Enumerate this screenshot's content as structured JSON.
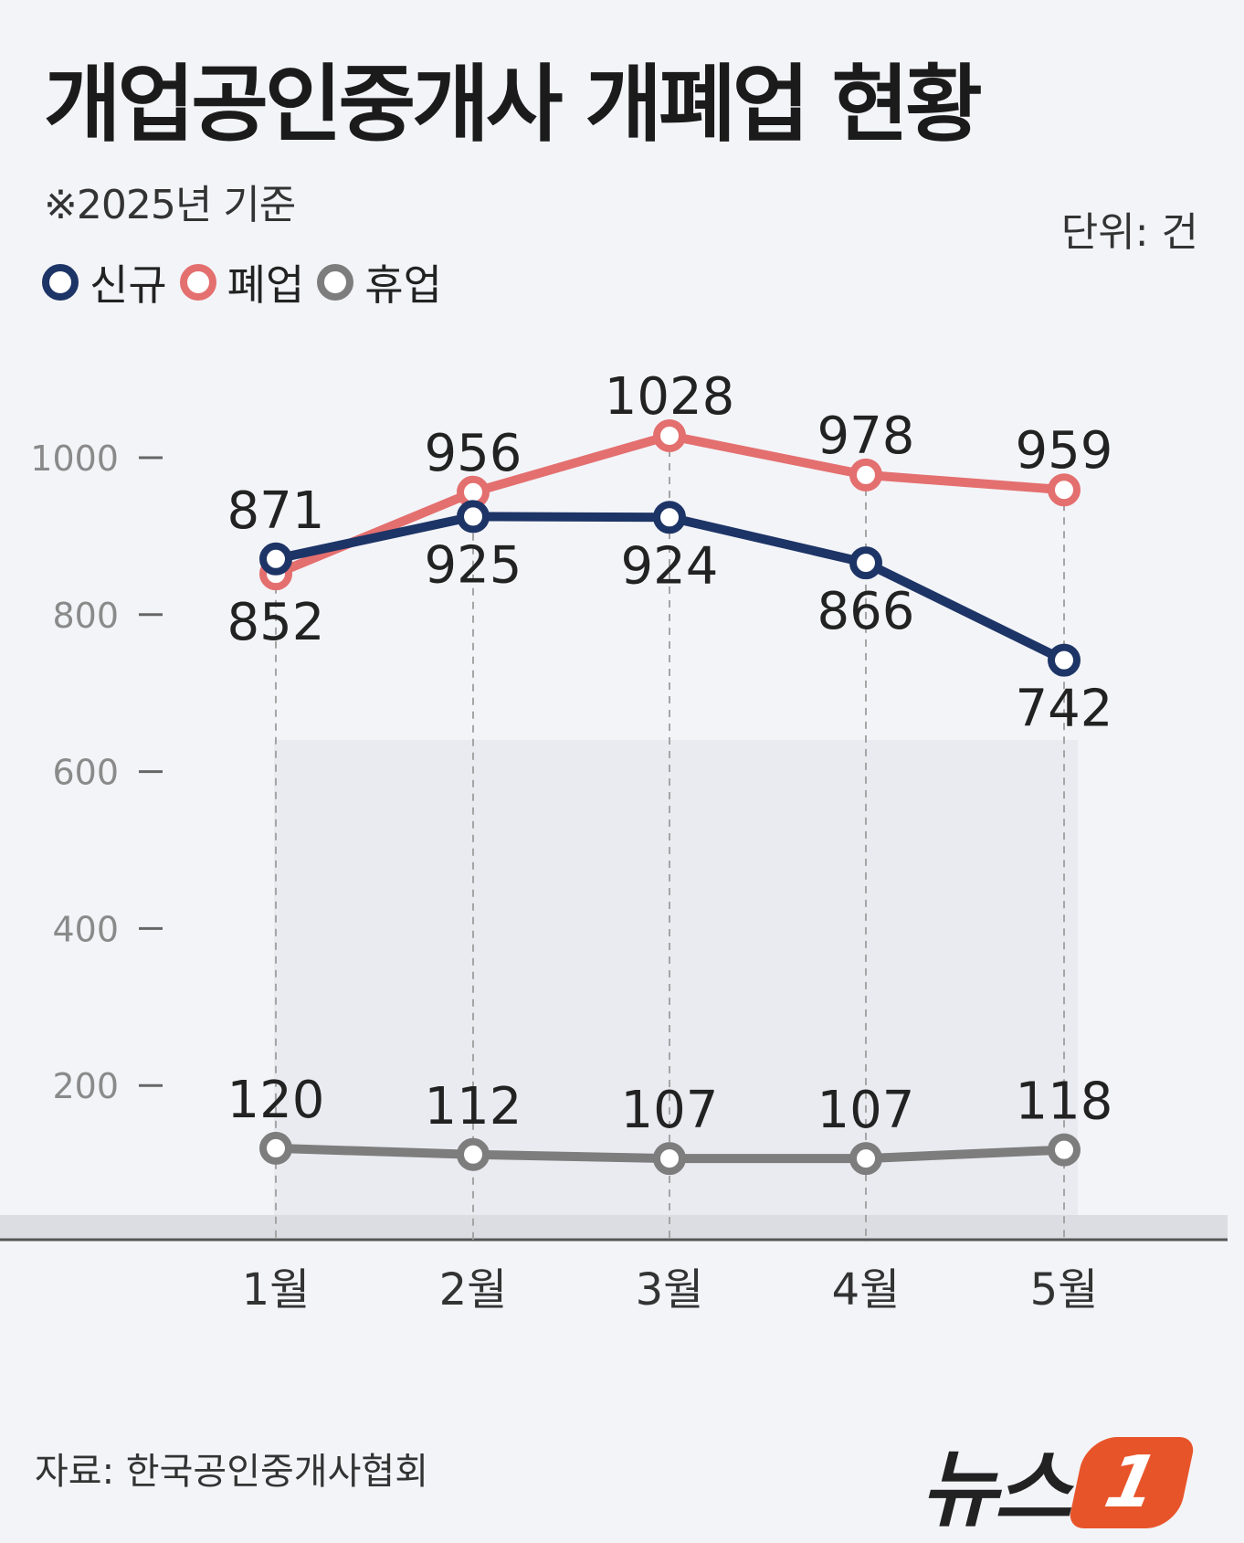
{
  "title": "개업공인중개사 개폐업 현황",
  "basis_note": "※2025년 기준",
  "unit": "단위: 건",
  "source": "자료: 한국공인중개사협회",
  "brand": {
    "text": "뉴스",
    "badge": "1"
  },
  "colors": {
    "신규": "#1d3466",
    "폐업": "#e46f6f",
    "휴업": "#7d7d7d",
    "brand_accent": "#e8542a"
  },
  "chart_data": {
    "type": "line",
    "categories": [
      "1월",
      "2월",
      "3월",
      "4월",
      "5월"
    ],
    "series": [
      {
        "name": "신규",
        "values": [
          871,
          925,
          924,
          866,
          742
        ]
      },
      {
        "name": "폐업",
        "values": [
          852,
          956,
          1028,
          978,
          959
        ]
      },
      {
        "name": "휴업",
        "values": [
          120,
          112,
          107,
          107,
          118
        ]
      }
    ],
    "y_ticks": [
      200,
      400,
      600,
      800,
      1000
    ],
    "ylim": [
      0,
      1000
    ],
    "grid": false,
    "legend_position": "top-left"
  }
}
